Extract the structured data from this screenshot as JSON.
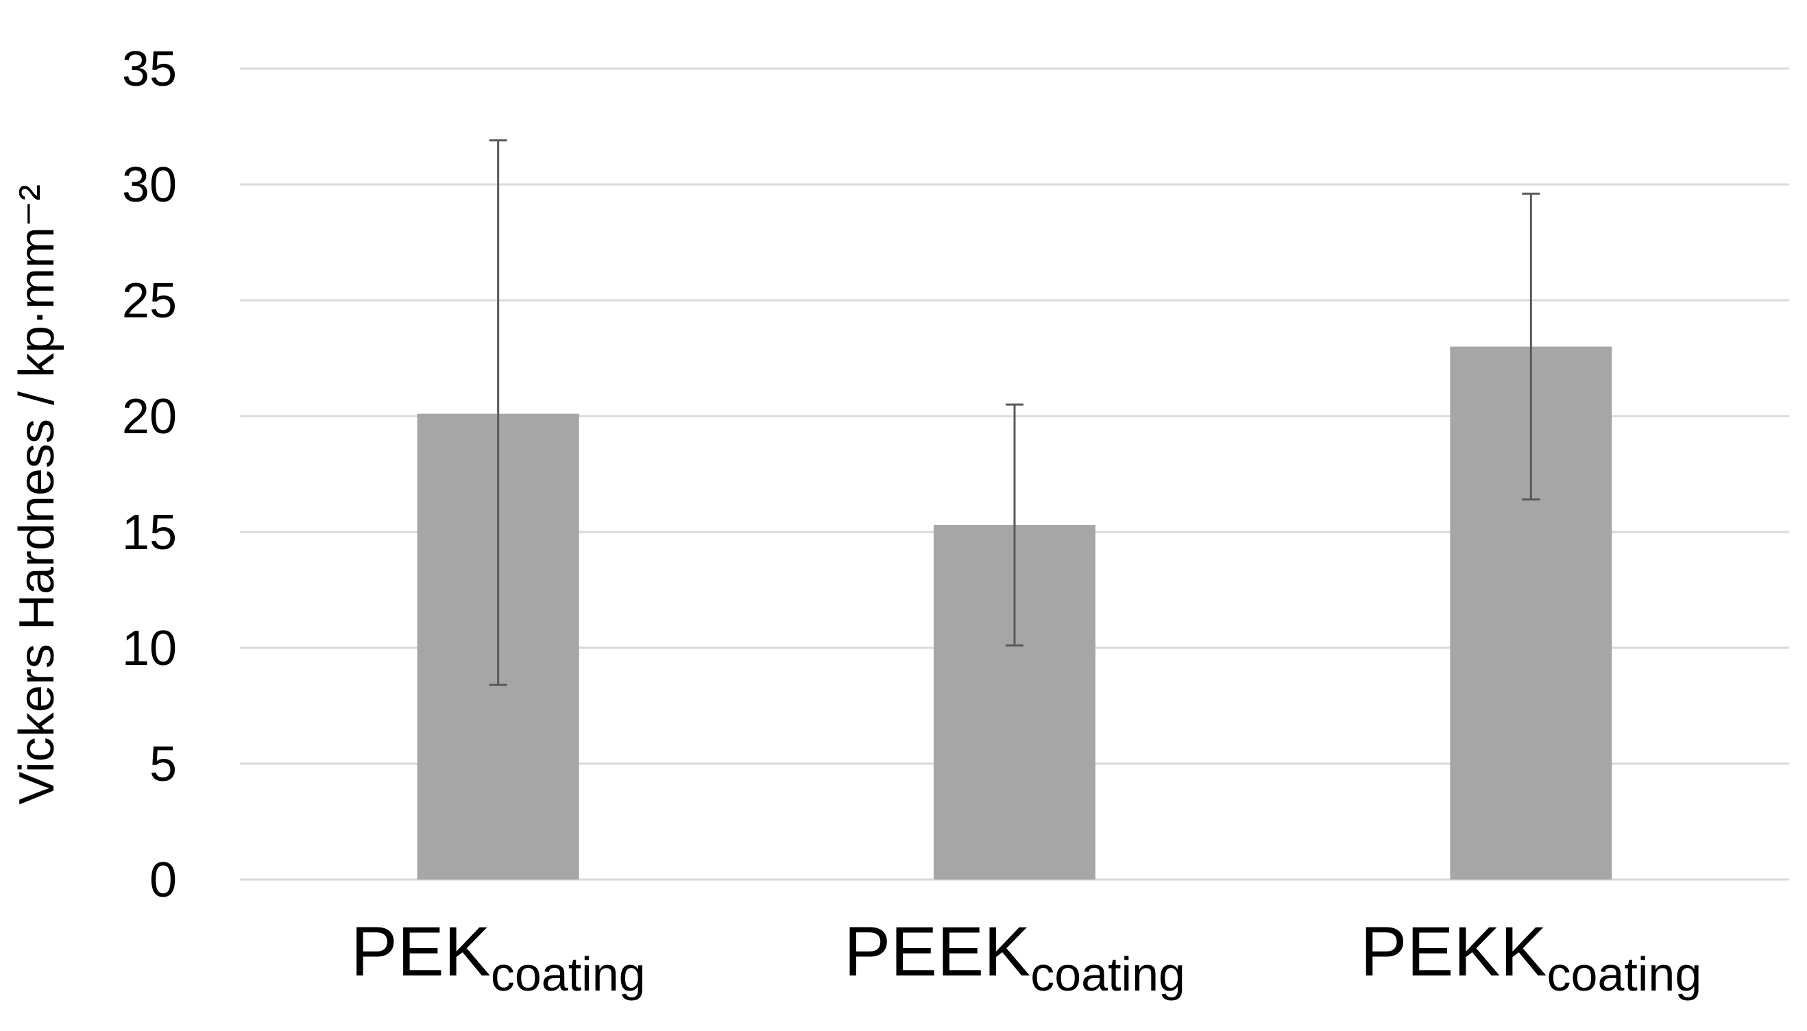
{
  "chart_data": {
    "type": "bar",
    "title": "",
    "xlabel": "",
    "ylabel": "Vickers Hardness / kp·mm⁻²",
    "ylim": [
      0,
      35
    ],
    "yticks": [
      0,
      5,
      10,
      15,
      20,
      25,
      30,
      35
    ],
    "grid": true,
    "legend": "none",
    "categories": [
      {
        "base": "PEK",
        "subscript": "coating"
      },
      {
        "base": "PEEK",
        "subscript": "coating"
      },
      {
        "base": "PEKK",
        "subscript": "coating"
      }
    ],
    "values": [
      20.1,
      15.3,
      23.0
    ],
    "error_low": [
      8.4,
      10.1,
      16.4
    ],
    "error_high": [
      31.9,
      20.5,
      29.6
    ],
    "colors": {
      "bar": "#a6a6a6",
      "grid": "#d9d9d9",
      "error_bar": "#595959",
      "text": "#000000"
    }
  }
}
